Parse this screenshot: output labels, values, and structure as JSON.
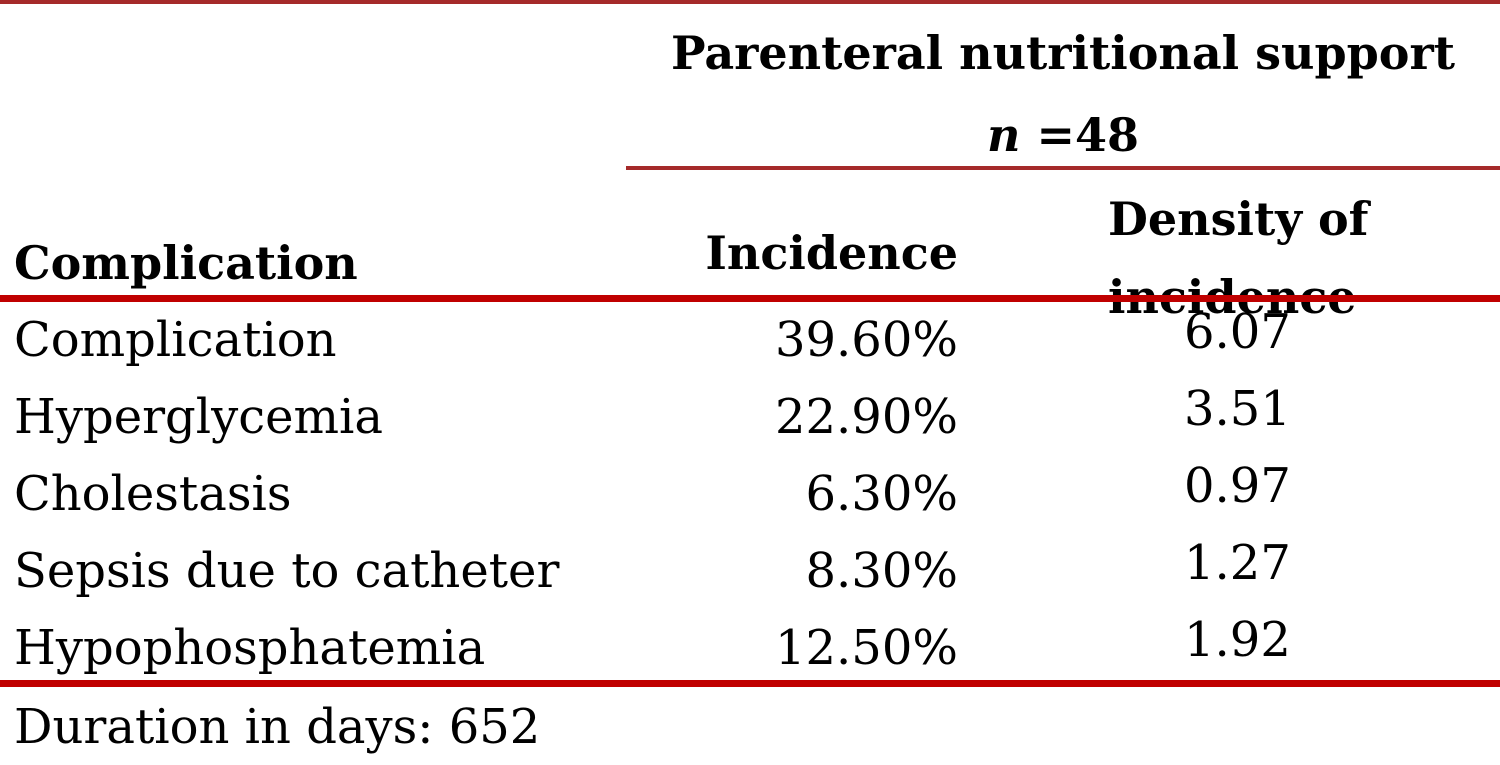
{
  "table": {
    "group_header": {
      "title": "Parenteral nutritional support",
      "n_symbol": "n",
      "n_value": " =48"
    },
    "columns": {
      "complication": "Complication",
      "incidence": "Incidence",
      "density_line1": "Density of",
      "density_line2": "incidence"
    },
    "rows": [
      {
        "label": "Complication",
        "incidence": "39.60%",
        "density": "6.07"
      },
      {
        "label": "Hyperglycemia",
        "incidence": "22.90%",
        "density": "3.51"
      },
      {
        "label": "Cholestasis",
        "incidence": "6.30%",
        "density": "0.97"
      },
      {
        "label": "Sepsis due to catheter",
        "incidence": "8.30%",
        "density": "1.27"
      },
      {
        "label": "Hypophosphatemia",
        "incidence": "12.50%",
        "density": "1.92"
      }
    ],
    "footnote": "Duration in days: 652",
    "colors": {
      "thin_rule": "#a52a2a",
      "thick_rule": "#c00000"
    }
  }
}
